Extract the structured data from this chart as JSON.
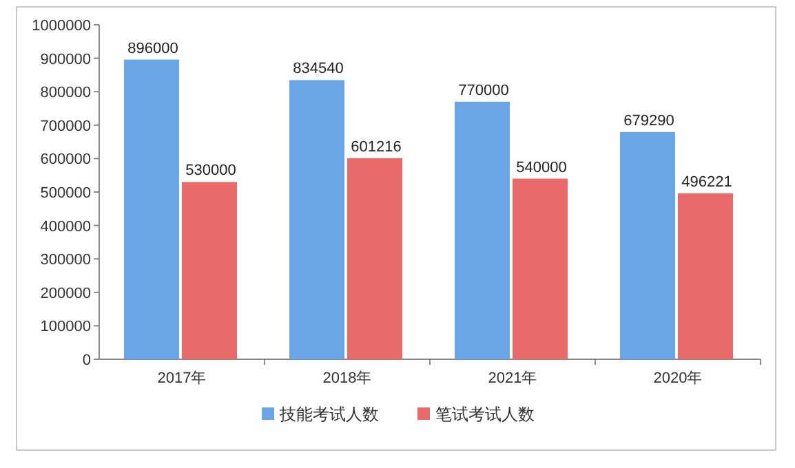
{
  "chart_data": {
    "type": "bar",
    "categories": [
      "2017年",
      "2018年",
      "2021年",
      "2020年"
    ],
    "series": [
      {
        "name": "技能考试人数",
        "color": "#6aa6e6",
        "values": [
          896000,
          834540,
          770000,
          679290
        ]
      },
      {
        "name": "笔试考试人数",
        "color": "#e86a6a",
        "values": [
          530000,
          601216,
          540000,
          496221
        ]
      }
    ],
    "ylim": [
      0,
      1000000
    ],
    "yticks": [
      0,
      100000,
      200000,
      300000,
      400000,
      500000,
      600000,
      700000,
      800000,
      900000,
      1000000
    ],
    "data_labels": true,
    "legend": "bottom"
  }
}
